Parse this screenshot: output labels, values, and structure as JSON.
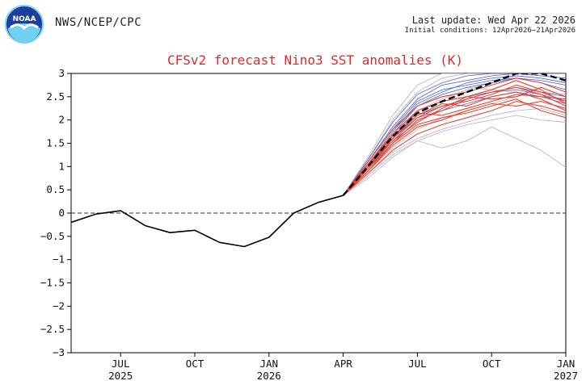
{
  "header": {
    "agency": "NWS/NCEP/CPC",
    "last_update": "Last update: Wed Apr 22 2026",
    "initial_conditions": "Initial conditions: 12Apr2026–21Apr2026",
    "logo_text": "NOAA"
  },
  "colors": {
    "title": "#d62b2b",
    "observed": "#000000",
    "ensemble_mean": "#000000",
    "members_early": "#e8432e",
    "members_late": "#5b6fd6",
    "members_other": "#b8b8c8",
    "zero_line": "#333333"
  },
  "chart_data": {
    "type": "line",
    "title": "CFSv2 forecast Nino3 SST anomalies (K)",
    "xlabel": "",
    "ylabel": "",
    "ylim": [
      -3,
      3
    ],
    "yticks": [
      -3,
      -2.5,
      -2,
      -1.5,
      -1,
      -0.5,
      0,
      0.5,
      1,
      1.5,
      2,
      2.5,
      3
    ],
    "ytick_labels": [
      "−3",
      "−2.5",
      "−2",
      "−1.5",
      "−1",
      "−0.5",
      "0",
      "0.5",
      "1",
      "1.5",
      "2",
      "2.5",
      "3"
    ],
    "xlim": [
      0,
      20
    ],
    "xticks": [
      {
        "x": 2,
        "label": "JUL",
        "year": "2025"
      },
      {
        "x": 5,
        "label": "OCT",
        "year": ""
      },
      {
        "x": 8,
        "label": "JAN",
        "year": "2026"
      },
      {
        "x": 11,
        "label": "APR",
        "year": ""
      },
      {
        "x": 14,
        "label": "JUL",
        "year": ""
      },
      {
        "x": 17,
        "label": "OCT",
        "year": ""
      },
      {
        "x": 20,
        "label": "JAN",
        "year": "2027"
      }
    ],
    "reference_line": {
      "y": 0,
      "style": "dashed"
    },
    "observed": {
      "name": "Observed",
      "x": [
        0,
        1,
        2,
        3,
        4,
        5,
        6,
        7,
        8,
        9,
        10,
        11
      ],
      "values": [
        -0.2,
        -0.02,
        0.05,
        -0.27,
        -0.42,
        -0.37,
        -0.63,
        -0.72,
        -0.52,
        0.0,
        0.23,
        0.38
      ]
    },
    "ensemble_mean": {
      "name": "Ensemble mean",
      "x": [
        11,
        12,
        13,
        14,
        15,
        16,
        17,
        18,
        19,
        20
      ],
      "values": [
        0.38,
        1.0,
        1.65,
        2.15,
        2.4,
        2.6,
        2.8,
        3.0,
        3.0,
        2.85
      ]
    },
    "members": [
      {
        "name": "m01",
        "group": "early",
        "values": [
          0.38,
          0.95,
          1.5,
          2.0,
          2.2,
          2.45,
          2.6,
          2.7,
          2.55,
          2.3
        ]
      },
      {
        "name": "m02",
        "group": "early",
        "values": [
          0.38,
          1.0,
          1.6,
          2.05,
          2.3,
          2.4,
          2.55,
          2.75,
          2.6,
          2.4
        ]
      },
      {
        "name": "m03",
        "group": "early",
        "values": [
          0.38,
          1.05,
          1.7,
          2.2,
          2.4,
          2.5,
          2.45,
          2.5,
          2.7,
          2.5
        ]
      },
      {
        "name": "m04",
        "group": "early",
        "values": [
          0.38,
          0.9,
          1.45,
          1.85,
          2.0,
          2.2,
          2.35,
          2.3,
          2.4,
          2.25
        ]
      },
      {
        "name": "m05",
        "group": "early",
        "values": [
          0.38,
          1.1,
          1.8,
          2.3,
          2.5,
          2.6,
          2.75,
          2.9,
          2.8,
          2.6
        ]
      },
      {
        "name": "m06",
        "group": "early",
        "values": [
          0.38,
          0.85,
          1.35,
          1.7,
          1.9,
          2.05,
          2.2,
          2.4,
          2.3,
          2.15
        ]
      },
      {
        "name": "m07",
        "group": "early",
        "values": [
          0.38,
          1.0,
          1.55,
          1.95,
          2.25,
          2.5,
          2.65,
          2.85,
          2.65,
          2.35
        ]
      },
      {
        "name": "m08",
        "group": "early",
        "values": [
          0.38,
          0.95,
          1.6,
          2.1,
          2.35,
          2.3,
          2.5,
          2.6,
          2.45,
          2.2
        ]
      },
      {
        "name": "m09",
        "group": "early",
        "values": [
          0.38,
          1.05,
          1.65,
          2.15,
          2.1,
          2.25,
          2.4,
          2.55,
          2.5,
          2.45
        ]
      },
      {
        "name": "m10",
        "group": "early",
        "values": [
          0.38,
          0.9,
          1.5,
          1.9,
          2.05,
          2.15,
          2.3,
          2.45,
          2.2,
          2.05
        ]
      },
      {
        "name": "m11",
        "group": "late",
        "values": [
          0.38,
          1.1,
          1.85,
          2.45,
          2.75,
          2.85,
          2.95,
          3.0,
          2.95,
          2.9
        ]
      },
      {
        "name": "m12",
        "group": "late",
        "values": [
          0.38,
          1.0,
          1.7,
          2.3,
          2.55,
          2.7,
          2.8,
          2.9,
          2.85,
          2.75
        ]
      },
      {
        "name": "m13",
        "group": "late",
        "values": [
          0.38,
          1.15,
          1.95,
          2.55,
          2.8,
          2.95,
          3.0,
          3.0,
          3.0,
          3.0
        ]
      },
      {
        "name": "m14",
        "group": "late",
        "values": [
          0.38,
          0.95,
          1.6,
          2.2,
          2.4,
          2.5,
          2.6,
          2.7,
          2.6,
          2.5
        ]
      },
      {
        "name": "m15",
        "group": "late",
        "values": [
          0.38,
          1.05,
          1.75,
          2.35,
          2.6,
          2.8,
          2.9,
          2.95,
          2.9,
          2.8
        ]
      },
      {
        "name": "m16",
        "group": "late",
        "values": [
          0.38,
          1.0,
          1.65,
          2.1,
          2.3,
          2.45,
          2.6,
          2.65,
          2.55,
          2.4
        ]
      },
      {
        "name": "m17",
        "group": "late",
        "values": [
          0.38,
          1.1,
          1.8,
          2.4,
          2.65,
          2.75,
          2.85,
          2.9,
          2.8,
          2.65
        ]
      },
      {
        "name": "m18",
        "group": "late",
        "values": [
          0.38,
          0.95,
          1.55,
          2.05,
          2.2,
          2.35,
          2.5,
          2.6,
          2.5,
          2.35
        ]
      },
      {
        "name": "m19",
        "group": "other",
        "values": [
          0.38,
          1.2,
          2.1,
          2.75,
          3.0,
          3.0,
          3.0,
          3.0,
          3.0,
          3.0
        ]
      },
      {
        "name": "m20",
        "group": "other",
        "values": [
          0.38,
          1.15,
          2.0,
          2.6,
          2.9,
          3.0,
          3.0,
          3.0,
          2.95,
          2.9
        ]
      },
      {
        "name": "m21",
        "group": "other",
        "values": [
          0.38,
          0.9,
          1.4,
          1.8,
          2.05,
          2.2,
          2.35,
          2.5,
          2.6,
          2.55
        ]
      },
      {
        "name": "m22",
        "group": "other",
        "values": [
          0.38,
          0.85,
          1.3,
          1.6,
          1.8,
          1.95,
          2.1,
          2.2,
          2.25,
          2.1
        ]
      },
      {
        "name": "m23",
        "group": "other",
        "values": [
          0.38,
          0.8,
          1.25,
          1.55,
          1.75,
          1.9,
          2.0,
          2.1,
          2.0,
          1.95
        ]
      },
      {
        "name": "m24",
        "group": "other",
        "values": [
          0.38,
          0.75,
          1.2,
          1.55,
          1.4,
          1.55,
          1.85,
          1.6,
          1.35,
          0.98
        ]
      },
      {
        "name": "m25",
        "group": "other",
        "values": [
          0.38,
          1.0,
          1.6,
          2.2,
          2.45,
          2.65,
          2.8,
          2.95,
          2.9,
          2.8
        ]
      },
      {
        "name": "m26",
        "group": "other",
        "values": [
          0.38,
          1.05,
          1.75,
          2.3,
          2.55,
          2.7,
          2.65,
          2.6,
          2.5,
          2.45
        ]
      }
    ],
    "member_x": [
      11,
      12,
      13,
      14,
      15,
      16,
      17,
      18,
      19,
      20
    ]
  }
}
